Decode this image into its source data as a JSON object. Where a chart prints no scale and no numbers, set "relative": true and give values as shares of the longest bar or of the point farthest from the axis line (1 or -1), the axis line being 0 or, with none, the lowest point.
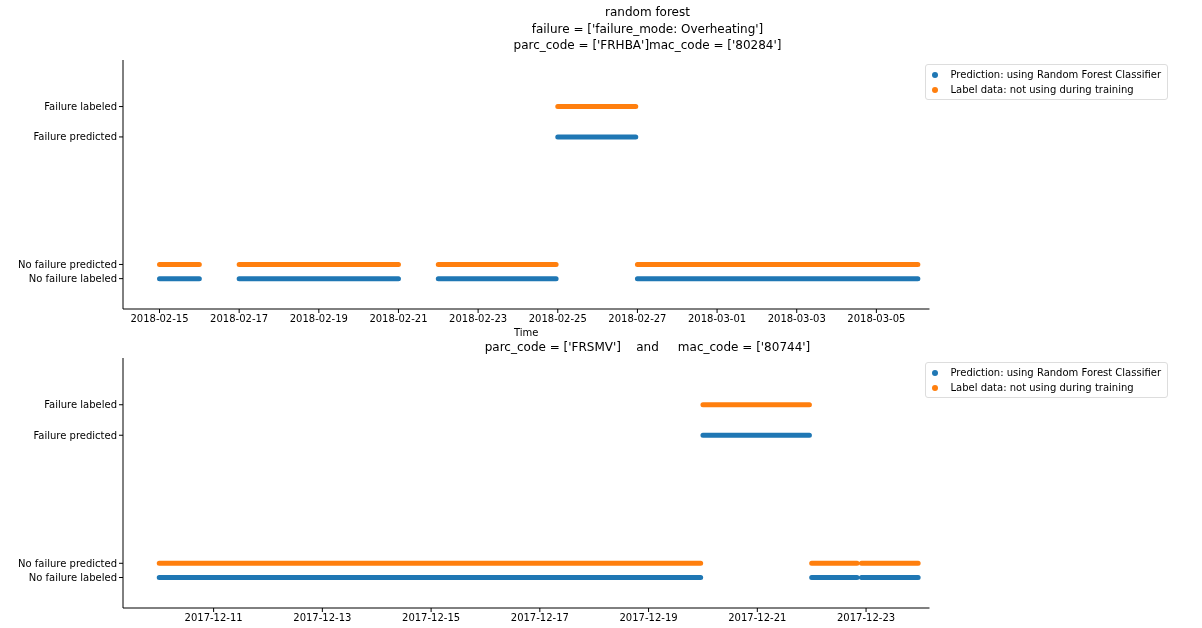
{
  "chart_data": [
    {
      "type": "line",
      "title": "random forest\nfailure = ['failure_mode: Overheating']\nparc_code = ['FRHBA']mac_code = ['80284']",
      "xlabel": "Time",
      "legend": "top right",
      "relative": true,
      "xlim": [
        "2018-02-14T02:00",
        "2018-03-06T08:00"
      ],
      "xticks": [
        "2018-02-15",
        "2018-02-17",
        "2018-02-19",
        "2018-02-21",
        "2018-02-23",
        "2018-02-25",
        "2018-02-27",
        "2018-03-01",
        "2018-03-03",
        "2018-03-05"
      ],
      "annotations": [
        "No failure labeled",
        "No failure predicted",
        "Failure predicted",
        "Failure labeled"
      ],
      "series": [
        {
          "name": "Prediction: using Random Forest Classifier",
          "color": "#1f77b4",
          "x": [
            "2018-02-15",
            "2018-02-16",
            "2018-02-16T12:00",
            "2018-02-17",
            "2018-02-21",
            "2018-02-21T12:00",
            "2018-02-22",
            "2018-02-24T23:00",
            "2018-02-24T23:30",
            "2018-02-25",
            "2018-02-26T23:00",
            "2018-02-26T23:30",
            "2018-02-27",
            "2018-03-06T01:00"
          ],
          "values": [
            0.15,
            0.15,
            null,
            0.15,
            0.15,
            null,
            0.15,
            0.15,
            null,
            0.85,
            0.85,
            null,
            0.15,
            0.15
          ]
        },
        {
          "name": "Label data: not using during training",
          "color": "#ff7f0e",
          "x": [
            "2018-02-15",
            "2018-02-16",
            "2018-02-16T12:00",
            "2018-02-17",
            "2018-02-21",
            "2018-02-21T12:00",
            "2018-02-22",
            "2018-02-24T23:00",
            "2018-02-24T23:30",
            "2018-02-25",
            "2018-02-26T23:00",
            "2018-02-26T23:30",
            "2018-02-27",
            "2018-03-06T01:00"
          ],
          "values": [
            0.22,
            0.22,
            null,
            0.22,
            0.22,
            null,
            0.22,
            0.22,
            null,
            1,
            1,
            null,
            0.22,
            0.22
          ]
        }
      ]
    },
    {
      "type": "line",
      "title": "parc_code = ['FRSMV']    and     mac_code = ['80744']",
      "legend": "top right",
      "relative": true,
      "xlim": [
        "2017-12-09T08:00",
        "2017-12-24T04:00"
      ],
      "xticks": [
        "2017-12-11",
        "2017-12-13",
        "2017-12-15",
        "2017-12-17",
        "2017-12-19",
        "2017-12-21",
        "2017-12-23"
      ],
      "annotations": [
        "No failure labeled",
        "No failure predicted",
        "Failure predicted",
        "Failure labeled"
      ],
      "series": [
        {
          "name": "Prediction: using Random Forest Classifier",
          "color": "#1f77b4",
          "x": [
            "2017-12-10",
            "2017-12-19T23:00",
            "2017-12-19T23:30",
            "2017-12-20",
            "2017-12-21T23:00",
            "2017-12-21T23:30",
            "2017-12-22",
            "2017-12-22T20:00",
            "2017-12-22T21:00",
            "2017-12-22T22:00",
            "2017-12-23T23:00"
          ],
          "values": [
            0.15,
            0.15,
            null,
            0.85,
            0.85,
            null,
            0.15,
            0.15,
            null,
            0.15,
            0.15
          ]
        },
        {
          "name": "Label data: not using during training",
          "color": "#ff7f0e",
          "x": [
            "2017-12-10",
            "2017-12-19T23:00",
            "2017-12-19T23:30",
            "2017-12-20",
            "2017-12-21T23:00",
            "2017-12-21T23:30",
            "2017-12-22",
            "2017-12-22T20:00",
            "2017-12-22T21:00",
            "2017-12-22T22:00",
            "2017-12-23T23:00"
          ],
          "values": [
            0.22,
            0.22,
            null,
            1,
            1,
            null,
            0.22,
            0.22,
            null,
            0.22,
            0.22
          ]
        }
      ]
    }
  ]
}
